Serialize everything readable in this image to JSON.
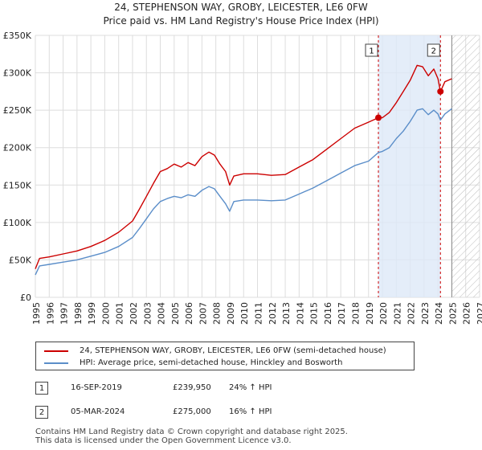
{
  "chart_data": {
    "type": "line",
    "title": "24, STEPHENSON WAY, GROBY, LEICESTER, LE6 0FW",
    "subtitle": "Price paid vs. HM Land Registry's House Price Index (HPI)",
    "xlabel": "",
    "ylabel": "",
    "xlim": [
      1995,
      2027
    ],
    "ylim": [
      0,
      350000
    ],
    "x_ticks": [
      "1995",
      "1996",
      "1997",
      "1998",
      "1999",
      "2000",
      "2001",
      "2002",
      "2003",
      "2004",
      "2005",
      "2006",
      "2007",
      "2008",
      "2009",
      "2010",
      "2011",
      "2012",
      "2013",
      "2014",
      "2015",
      "2016",
      "2017",
      "2018",
      "2019",
      "2020",
      "2021",
      "2022",
      "2023",
      "2024",
      "2025",
      "2026",
      "2027"
    ],
    "y_ticks": [
      {
        "value": 0,
        "label": "£0"
      },
      {
        "value": 50000,
        "label": "£50K"
      },
      {
        "value": 100000,
        "label": "£100K"
      },
      {
        "value": 150000,
        "label": "£150K"
      },
      {
        "value": 200000,
        "label": "£200K"
      },
      {
        "value": 250000,
        "label": "£250K"
      },
      {
        "value": 300000,
        "label": "£300K"
      },
      {
        "value": 350000,
        "label": "£350K"
      }
    ],
    "grid": true,
    "shaded_region": [
      2019.71,
      2024.18
    ],
    "hatched_region": [
      2025.0,
      2027.0
    ],
    "series": [
      {
        "name": "24, STEPHENSON WAY, GROBY, LEICESTER, LE6 0FW (semi-detached house)",
        "color": "#cc0000",
        "x": [
          1995.0,
          1995.3,
          1996,
          1997,
          1998,
          1999,
          2000,
          2001,
          2002,
          2002.5,
          2003,
          2003.5,
          2004,
          2004.5,
          2005,
          2005.5,
          2006,
          2006.5,
          2007,
          2007.5,
          2007.9,
          2008.3,
          2008.7,
          2009.0,
          2009.3,
          2010,
          2011,
          2012,
          2013,
          2014,
          2015,
          2016,
          2017,
          2018,
          2019,
          2019.71,
          2020,
          2020.5,
          2021,
          2021.5,
          2022,
          2022.5,
          2022.9,
          2023.3,
          2023.7,
          2024.0,
          2024.18,
          2024.5,
          2025.0
        ],
        "y": [
          38000,
          52000,
          54000,
          58000,
          62000,
          68000,
          76000,
          87000,
          102000,
          118000,
          135000,
          152000,
          168000,
          172000,
          178000,
          174000,
          180000,
          176000,
          188000,
          194000,
          190000,
          178000,
          168000,
          150000,
          162000,
          165000,
          165000,
          163000,
          164000,
          174000,
          184000,
          198000,
          212000,
          226000,
          234000,
          239950,
          240000,
          247000,
          260000,
          275000,
          290000,
          310000,
          308000,
          296000,
          305000,
          292000,
          275000,
          288000,
          292000
        ]
      },
      {
        "name": "HPI: Average price, semi-detached house, Hinckley and Bosworth",
        "color": "#5b8ec9",
        "x": [
          1995.0,
          1995.3,
          1996,
          1997,
          1998,
          1999,
          2000,
          2001,
          2002,
          2002.5,
          2003,
          2003.5,
          2004,
          2004.5,
          2005,
          2005.5,
          2006,
          2006.5,
          2007,
          2007.5,
          2007.9,
          2008.3,
          2008.7,
          2009.0,
          2009.3,
          2010,
          2011,
          2012,
          2013,
          2014,
          2015,
          2016,
          2017,
          2018,
          2019,
          2019.71,
          2020,
          2020.5,
          2021,
          2021.5,
          2022,
          2022.5,
          2022.9,
          2023.3,
          2023.7,
          2024.0,
          2024.18,
          2024.5,
          2025.0
        ],
        "y": [
          30000,
          42000,
          44000,
          47000,
          50000,
          55000,
          60000,
          68000,
          80000,
          92000,
          105000,
          118000,
          128000,
          132000,
          135000,
          133000,
          137000,
          135000,
          143000,
          148000,
          145000,
          135000,
          125000,
          115000,
          128000,
          130000,
          130000,
          129000,
          130000,
          138000,
          146000,
          156000,
          166000,
          176000,
          182000,
          193500,
          195000,
          200000,
          212000,
          222000,
          235000,
          250000,
          252000,
          244000,
          250000,
          245000,
          237000,
          245000,
          252000
        ]
      }
    ],
    "annotations": [
      {
        "label": "1",
        "x": 2019.71,
        "y": 239950
      },
      {
        "label": "2",
        "x": 2024.18,
        "y": 275000
      }
    ]
  },
  "legend": {
    "items": [
      {
        "label": "24, STEPHENSON WAY, GROBY, LEICESTER, LE6 0FW (semi-detached house)",
        "color": "#cc0000"
      },
      {
        "label": "HPI: Average price, semi-detached house, Hinckley and Bosworth",
        "color": "#5b8ec9"
      }
    ]
  },
  "sales": [
    {
      "num": "1",
      "date": "16-SEP-2019",
      "price": "£239,950",
      "hpi": "24% ↑ HPI"
    },
    {
      "num": "2",
      "date": "05-MAR-2024",
      "price": "£275,000",
      "hpi": "16% ↑ HPI"
    }
  ],
  "footer": {
    "line1": "Contains HM Land Registry data © Crown copyright and database right 2025.",
    "line2": "This data is licensed under the Open Government Licence v3.0."
  }
}
